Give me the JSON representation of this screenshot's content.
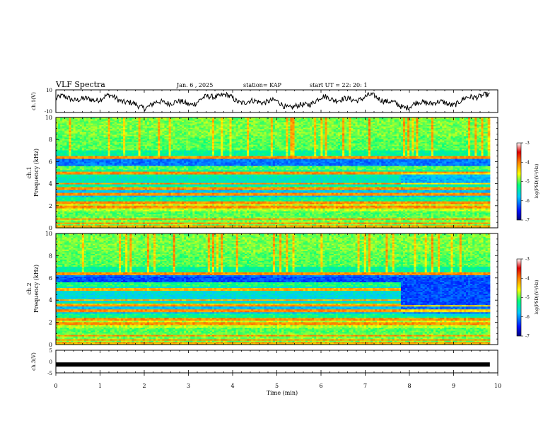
{
  "header": {
    "title": "VLF Spectra",
    "date": "Jan. 6 , 2025",
    "station": "station= KAP",
    "start": "start UT =  22: 20: 1"
  },
  "chart_data": [
    {
      "type": "line",
      "name": "ch1-waveform",
      "ylabel": "ch.1(V)",
      "ylim": [
        -10,
        10
      ],
      "yticks": [
        "10",
        "-10"
      ],
      "xlim": [
        0,
        10
      ]
    },
    {
      "type": "heatmap",
      "name": "ch1-spectrogram",
      "ylabel_1": "ch.1",
      "ylabel_2": "Frequency (kHz)",
      "ylim": [
        0,
        10
      ],
      "yticks": [
        "0",
        "2",
        "4",
        "6",
        "8",
        "10"
      ],
      "data_xmax": 9.82,
      "colorbar": {
        "label": "log(PSD)(V²/Hz)",
        "ticks": [
          "-3",
          "-4",
          "-5",
          "-6",
          "-7"
        ],
        "range": [
          -7,
          -3
        ]
      }
    },
    {
      "type": "heatmap",
      "name": "ch2-spectrogram",
      "ylabel_1": "ch.2",
      "ylabel_2": "Frequency (kHz)",
      "ylim": [
        0,
        10
      ],
      "yticks": [
        "0",
        "2",
        "4",
        "6",
        "8",
        "10"
      ],
      "data_xmax": 9.82,
      "change_at_min": 7.8,
      "colorbar": {
        "label": "log(PSD)(V²/Hz)",
        "ticks": [
          "-3",
          "-4",
          "-5",
          "-6",
          "-7"
        ],
        "range": [
          -7,
          -3
        ]
      }
    },
    {
      "type": "line",
      "name": "ch3-waveform",
      "ylabel": "ch.3(V)",
      "ylim": [
        -5,
        5
      ],
      "yticks": [
        "5",
        "0",
        "-5"
      ],
      "level_v": -1.3,
      "xlim": [
        0,
        10
      ]
    }
  ],
  "xaxis": {
    "label": "Time (min)",
    "ticks": [
      "0",
      "1",
      "2",
      "3",
      "4",
      "5",
      "6",
      "7",
      "8",
      "9",
      "10"
    ],
    "range": [
      0,
      10
    ]
  }
}
